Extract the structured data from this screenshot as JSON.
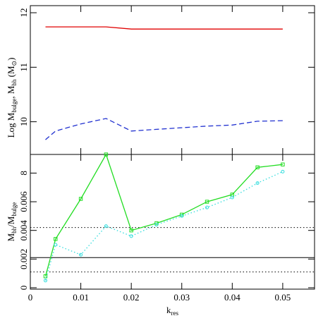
{
  "chart_data": [
    {
      "type": "line",
      "ylabel": [
        {
          "text": "Log M"
        },
        {
          "text": "bulge",
          "sub": true
        },
        {
          "text": ", M"
        },
        {
          "text": "bh",
          "sub": true
        },
        {
          "text": "  (M"
        },
        {
          "text": "⊙",
          "sub": true
        },
        {
          "text": ")"
        }
      ],
      "x": [
        0.003,
        0.005,
        0.01,
        0.015,
        0.02,
        0.025,
        0.03,
        0.035,
        0.04,
        0.045,
        0.05
      ],
      "xlim": [
        0,
        0.0563
      ],
      "xticks": [
        0,
        0.01,
        0.02,
        0.03,
        0.04,
        0.05
      ],
      "ylim": [
        9.4,
        12.13
      ],
      "yticks": [
        10,
        11,
        12
      ],
      "series": [
        {
          "color": "#e00000",
          "style": "solid",
          "values": [
            11.74,
            11.74,
            11.74,
            11.74,
            11.7,
            11.7,
            11.7,
            11.7,
            11.7,
            11.7,
            11.7
          ]
        },
        {
          "color": "#2030d0",
          "style": "dashed",
          "values": [
            9.67,
            9.83,
            9.96,
            10.06,
            9.83,
            9.86,
            9.89,
            9.92,
            9.94,
            10.01,
            10.02
          ]
        }
      ]
    },
    {
      "type": "line",
      "xlabel": [
        {
          "text": "k"
        },
        {
          "text": "res",
          "sub": true
        }
      ],
      "ylabel": [
        {
          "text": "M"
        },
        {
          "text": "bh",
          "sub": true
        },
        {
          "text": "/M"
        },
        {
          "text": "bulge",
          "sub": true
        }
      ],
      "x": [
        0.003,
        0.005,
        0.01,
        0.015,
        0.02,
        0.025,
        0.03,
        0.035,
        0.04,
        0.045,
        0.05
      ],
      "xlim": [
        0,
        0.0563
      ],
      "xticks": [
        0,
        0.01,
        0.02,
        0.03,
        0.04,
        0.05
      ],
      "ylim": [
        -0.0001,
        0.0093
      ],
      "yticks": [
        0,
        0.002,
        0.004,
        0.006,
        {
          "value": 0.008,
          "label": "8"
        }
      ],
      "hlines": [
        {
          "value": 0.0021,
          "style": "solid"
        },
        {
          "value": 0.0042,
          "style": "dotted"
        },
        {
          "value": 0.0011,
          "style": "dotted"
        }
      ],
      "series": [
        {
          "color": "#22dd22",
          "style": "solid",
          "marker": "square",
          "values": [
            0.0008,
            0.0034,
            0.0062,
            0.0093,
            0.004,
            0.0045,
            0.0051,
            0.006,
            0.0065,
            0.0084,
            0.0086
          ]
        },
        {
          "color": "#33dddd",
          "style": "dotted",
          "marker": "circle",
          "values": [
            0.0005,
            0.003,
            0.0023,
            0.0043,
            0.0036,
            0.0044,
            0.005,
            0.0056,
            0.0063,
            0.0073,
            0.0081
          ]
        }
      ]
    }
  ]
}
